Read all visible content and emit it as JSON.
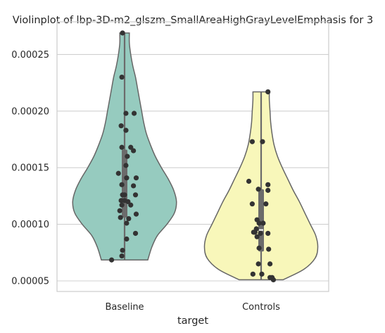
{
  "chart_data": {
    "type": "violin",
    "title": "Violinplot of lbp-3D-m2_glszm_SmallAreaHighGrayLevelEmphasis for 3",
    "xlabel": "target",
    "ylabel": "",
    "categories": [
      "Baseline",
      "Controls"
    ],
    "ylim": [
      4e-05,
      0.00028
    ],
    "yticks": [
      5e-05,
      0.0001,
      0.00015,
      0.0002,
      0.00025
    ],
    "ytick_labels": [
      "0.00005",
      "0.00010",
      "0.00015",
      "0.00020",
      "0.00025"
    ],
    "grid": true,
    "colors": {
      "Baseline": "#96cbbf",
      "Controls": "#f8f7ba",
      "outline": "#666666",
      "points": "#333333",
      "box": "#6b6b6b",
      "grid": "#d0d0d0"
    },
    "series": [
      {
        "name": "Baseline",
        "min": 6.85e-05,
        "max": 0.000269,
        "q1": 0.000106,
        "median": 0.000126,
        "q3": 0.000166,
        "density_profile": [
          [
            6.85e-05,
            0.34
          ],
          [
            8e-05,
            0.4
          ],
          [
            9e-05,
            0.48
          ],
          [
            0.0001,
            0.62
          ],
          [
            0.00011,
            0.73
          ],
          [
            0.00012,
            0.76
          ],
          [
            0.00013,
            0.72
          ],
          [
            0.00014,
            0.64
          ],
          [
            0.00015,
            0.54
          ],
          [
            0.00016,
            0.45
          ],
          [
            0.00017,
            0.38
          ],
          [
            0.00018,
            0.32
          ],
          [
            0.00019,
            0.28
          ],
          [
            0.0002,
            0.25
          ],
          [
            0.00021,
            0.22
          ],
          [
            0.00022,
            0.19
          ],
          [
            0.00023,
            0.16
          ],
          [
            0.00024,
            0.12
          ],
          [
            0.00025,
            0.09
          ],
          [
            0.00026,
            0.07
          ],
          [
            0.000269,
            0.07
          ]
        ],
        "points": [
          [
            -0.03,
            0.000269
          ],
          [
            -0.04,
            0.00023
          ],
          [
            0.02,
            0.000198
          ],
          [
            0.14,
            0.000198
          ],
          [
            -0.05,
            0.000187
          ],
          [
            0.02,
            0.000183
          ],
          [
            -0.04,
            0.000168
          ],
          [
            0.09,
            0.000168
          ],
          [
            0.13,
            0.000165
          ],
          [
            0.04,
            0.00016
          ],
          [
            0.02,
            0.000152
          ],
          [
            -0.09,
            0.000145
          ],
          [
            0.17,
            0.000141
          ],
          [
            0.03,
            0.000141
          ],
          [
            -0.04,
            0.000135
          ],
          [
            0.13,
            0.000134
          ],
          [
            -0.03,
            0.000126
          ],
          [
            0.0,
            0.000126
          ],
          [
            0.16,
            0.000126
          ],
          [
            -0.05,
            0.000121
          ],
          [
            0.0,
            0.000121
          ],
          [
            0.05,
            0.00012
          ],
          [
            -0.04,
            0.000117
          ],
          [
            0.09,
            0.000117
          ],
          [
            -0.07,
            0.000112
          ],
          [
            0.17,
            0.000109
          ],
          [
            -0.06,
            0.000106
          ],
          [
            0.06,
            0.000105
          ],
          [
            0.03,
            0.000101
          ],
          [
            0.16,
            9.2e-05
          ],
          [
            0.03,
            8.7e-05
          ],
          [
            -0.03,
            7.7e-05
          ],
          [
            -0.04,
            7.2e-05
          ],
          [
            -0.19,
            6.85e-05
          ]
        ]
      },
      {
        "name": "Controls",
        "min": 5.1e-05,
        "max": 0.000217,
        "q1": 7.6e-05,
        "median": 9.5e-05,
        "q3": 0.000131,
        "density_profile": [
          [
            5.1e-05,
            0.32
          ],
          [
            6e-05,
            0.62
          ],
          [
            7e-05,
            0.79
          ],
          [
            8e-05,
            0.83
          ],
          [
            9e-05,
            0.8
          ],
          [
            0.0001,
            0.72
          ],
          [
            0.00011,
            0.64
          ],
          [
            0.00012,
            0.56
          ],
          [
            0.00013,
            0.47
          ],
          [
            0.00014,
            0.39
          ],
          [
            0.00015,
            0.31
          ],
          [
            0.00016,
            0.24
          ],
          [
            0.00017,
            0.19
          ],
          [
            0.00018,
            0.16
          ],
          [
            0.00019,
            0.14
          ],
          [
            0.0002,
            0.13
          ],
          [
            0.00021,
            0.12
          ],
          [
            0.000217,
            0.12
          ]
        ],
        "points": [
          [
            0.1,
            0.000217
          ],
          [
            -0.13,
            0.000173
          ],
          [
            0.02,
            0.000173
          ],
          [
            -0.18,
            0.000138
          ],
          [
            0.1,
            0.000135
          ],
          [
            -0.04,
            0.000131
          ],
          [
            0.1,
            0.00013
          ],
          [
            -0.13,
            0.000118
          ],
          [
            0.07,
            0.000118
          ],
          [
            -0.06,
            0.000104
          ],
          [
            -0.03,
            0.000101
          ],
          [
            0.03,
            0.000101
          ],
          [
            -0.07,
            9.6e-05
          ],
          [
            -0.09,
            9.3e-05
          ],
          [
            -0.11,
            9.3e-05
          ],
          [
            -0.01,
            9.2e-05
          ],
          [
            0.1,
            9.2e-05
          ],
          [
            -0.06,
            8.9e-05
          ],
          [
            -0.03,
            7.9e-05
          ],
          [
            0.11,
            7.8e-05
          ],
          [
            0.13,
            6.5e-05
          ],
          [
            -0.04,
            6.5e-05
          ],
          [
            -0.12,
            5.6e-05
          ],
          [
            0.01,
            5.6e-05
          ],
          [
            0.13,
            5.3e-05
          ],
          [
            0.16,
            5.3e-05
          ],
          [
            0.18,
            5.1e-05
          ]
        ]
      }
    ]
  }
}
